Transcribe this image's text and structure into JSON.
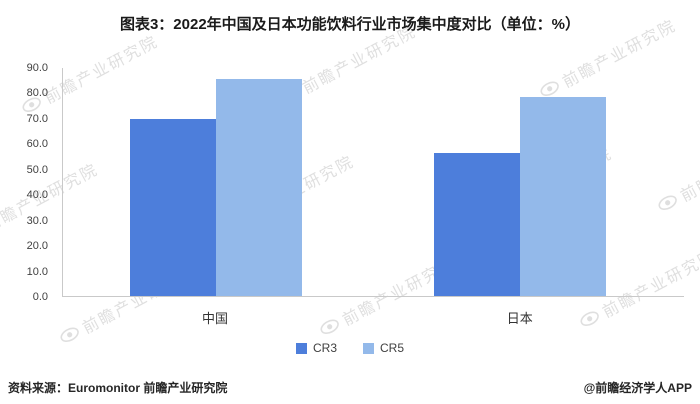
{
  "title": "图表3：2022年中国及日本功能饮料行业市场集中度对比（单位：%）",
  "chart_data": {
    "type": "bar",
    "title": "图表3：2022年中国及日本功能饮料行业市场集中度对比（单位：%）",
    "categories": [
      "中国",
      "日本"
    ],
    "series": [
      {
        "name": "CR3",
        "color": "#4d7edb",
        "values": [
          70.0,
          56.5
        ]
      },
      {
        "name": "CR5",
        "color": "#93b9ea",
        "values": [
          85.5,
          78.5
        ]
      }
    ],
    "xlabel": "",
    "ylabel": "",
    "ylim": [
      0,
      90
    ],
    "yticks": [
      "90.0",
      "80.0",
      "70.0",
      "60.0",
      "50.0",
      "40.0",
      "30.0",
      "20.0",
      "10.0",
      "0.0"
    ],
    "grid": false,
    "legend_position": "bottom"
  },
  "legend": {
    "items": [
      "CR3",
      "CR5"
    ]
  },
  "footer": {
    "source": "资料来源：Euromonitor 前瞻产业研究院",
    "handle": "@前瞻经济学人APP"
  },
  "watermark": {
    "text": "前瞻产业研究院"
  },
  "colors": {
    "cr3": "#4d7edb",
    "cr5": "#93b9ea",
    "axis": "#c9c9c9",
    "watermark": "#c6c6c6"
  }
}
